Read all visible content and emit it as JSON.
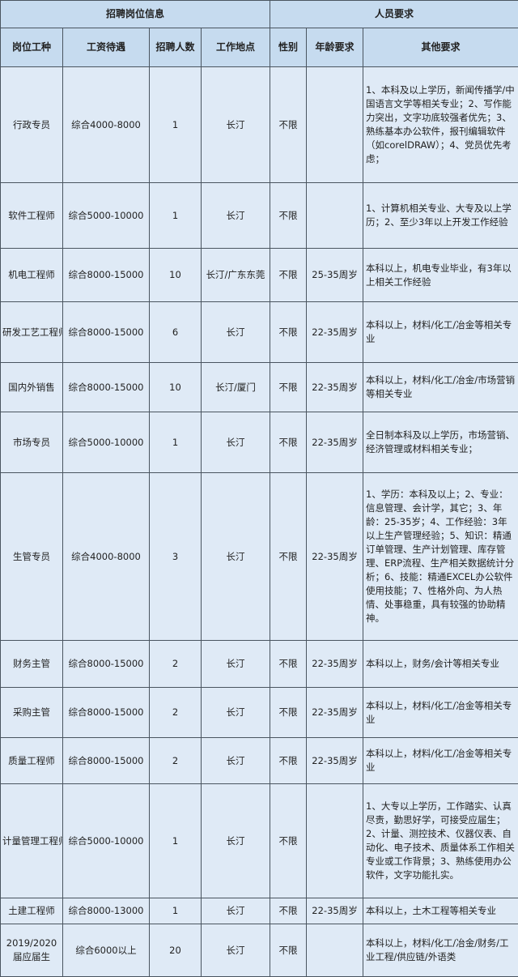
{
  "header": {
    "group_left": "招聘岗位信息",
    "group_right": "人员要求",
    "columns": [
      "岗位工种",
      "工资待遇",
      "招聘人数",
      "工作地点",
      "性别",
      "年龄要求",
      "其他要求"
    ]
  },
  "rows": [
    {
      "position": "行政专员",
      "salary": "综合4000-8000",
      "count": "1",
      "location": "长汀",
      "gender": "不限",
      "age": "",
      "other": "1、本科及以上学历，新闻传播学/中国语言文学等相关专业；2、写作能力突出，文字功底较强者优先；3、熟练基本办公软件，报刊编辑软件（如corelDRAW）；4、党员优先考虑；"
    },
    {
      "position": "软件工程师",
      "salary": "综合5000-10000",
      "count": "1",
      "location": "长汀",
      "gender": "不限",
      "age": "",
      "other": "1、计算机相关专业、大专及以上学历；2、至少3年以上开发工作经验"
    },
    {
      "position": "机电工程师",
      "salary": "综合8000-15000",
      "count": "10",
      "location": "长汀/广东东莞",
      "gender": "不限",
      "age": "25-35周岁",
      "other": "本科以上，机电专业毕业，有3年以上相关工作经验"
    },
    {
      "position": "研发工艺工程师",
      "salary": "综合8000-15000",
      "count": "6",
      "location": "长汀",
      "gender": "不限",
      "age": "22-35周岁",
      "other": "本科以上，材料/化工/冶金等相关专业"
    },
    {
      "position": "国内外销售",
      "salary": "综合8000-15000",
      "count": "10",
      "location": "长汀/厦门",
      "gender": "不限",
      "age": "22-35周岁",
      "other": "本科以上，材料/化工/冶金/市场营销等相关专业"
    },
    {
      "position": "市场专员",
      "salary": "综合5000-10000",
      "count": "1",
      "location": "长汀",
      "gender": "不限",
      "age": "22-35周岁",
      "other": "全日制本科及以上学历，市场营销、经济管理或材料相关专业；"
    },
    {
      "position": "生管专员",
      "salary": "综合4000-8000",
      "count": "3",
      "location": "长汀",
      "gender": "不限",
      "age": "22-35周岁",
      "other": "1、学历：本科及以上；2、专业：信息管理、会计学，其它；3、年龄：25-35岁；4、工作经验：3年以上生产管理经验；5、知识：精通订单管理、生产计划管理、库存管理、ERP流程、生产相关数据统计分析；6、技能：精通EXCEL办公软件使用技能；7、性格外向、为人热情、处事稳重，具有较强的协助精神。"
    },
    {
      "position": "财务主管",
      "salary": "综合8000-15000",
      "count": "2",
      "location": "长汀",
      "gender": "不限",
      "age": "22-35周岁",
      "other": "本科以上，财务/会计等相关专业"
    },
    {
      "position": "采购主管",
      "salary": "综合8000-15000",
      "count": "2",
      "location": "长汀",
      "gender": "不限",
      "age": "22-35周岁",
      "other": "本科以上，材料/化工/冶金等相关专业"
    },
    {
      "position": "质量工程师",
      "salary": "综合8000-15000",
      "count": "2",
      "location": "长汀",
      "gender": "不限",
      "age": "22-35周岁",
      "other": "本科以上，材料/化工/冶金等相关专业"
    },
    {
      "position": "计量管理工程师",
      "salary": "综合5000-10000",
      "count": "1",
      "location": "长汀",
      "gender": "不限",
      "age": "",
      "other": "1、大专以上学历，工作踏实、认真尽责，勤思好学，可接受应届生；2、计量、测控技术、仪器仪表、自动化、电子技术、质量体系工作相关专业或工作背景；3、熟练使用办公软件，文字功能扎实。"
    },
    {
      "position": "土建工程师",
      "salary": "综合8000-13000",
      "count": "1",
      "location": "长汀",
      "gender": "不限",
      "age": "22-35周岁",
      "other": "本科以上，土木工程等相关专业"
    },
    {
      "position": "2019/2020届应届生",
      "salary": "综合6000以上",
      "count": "20",
      "location": "长汀",
      "gender": "不限",
      "age": "",
      "other": "本科以上，材料/化工/冶金/财务/工业工程/供应链/外语类"
    }
  ]
}
